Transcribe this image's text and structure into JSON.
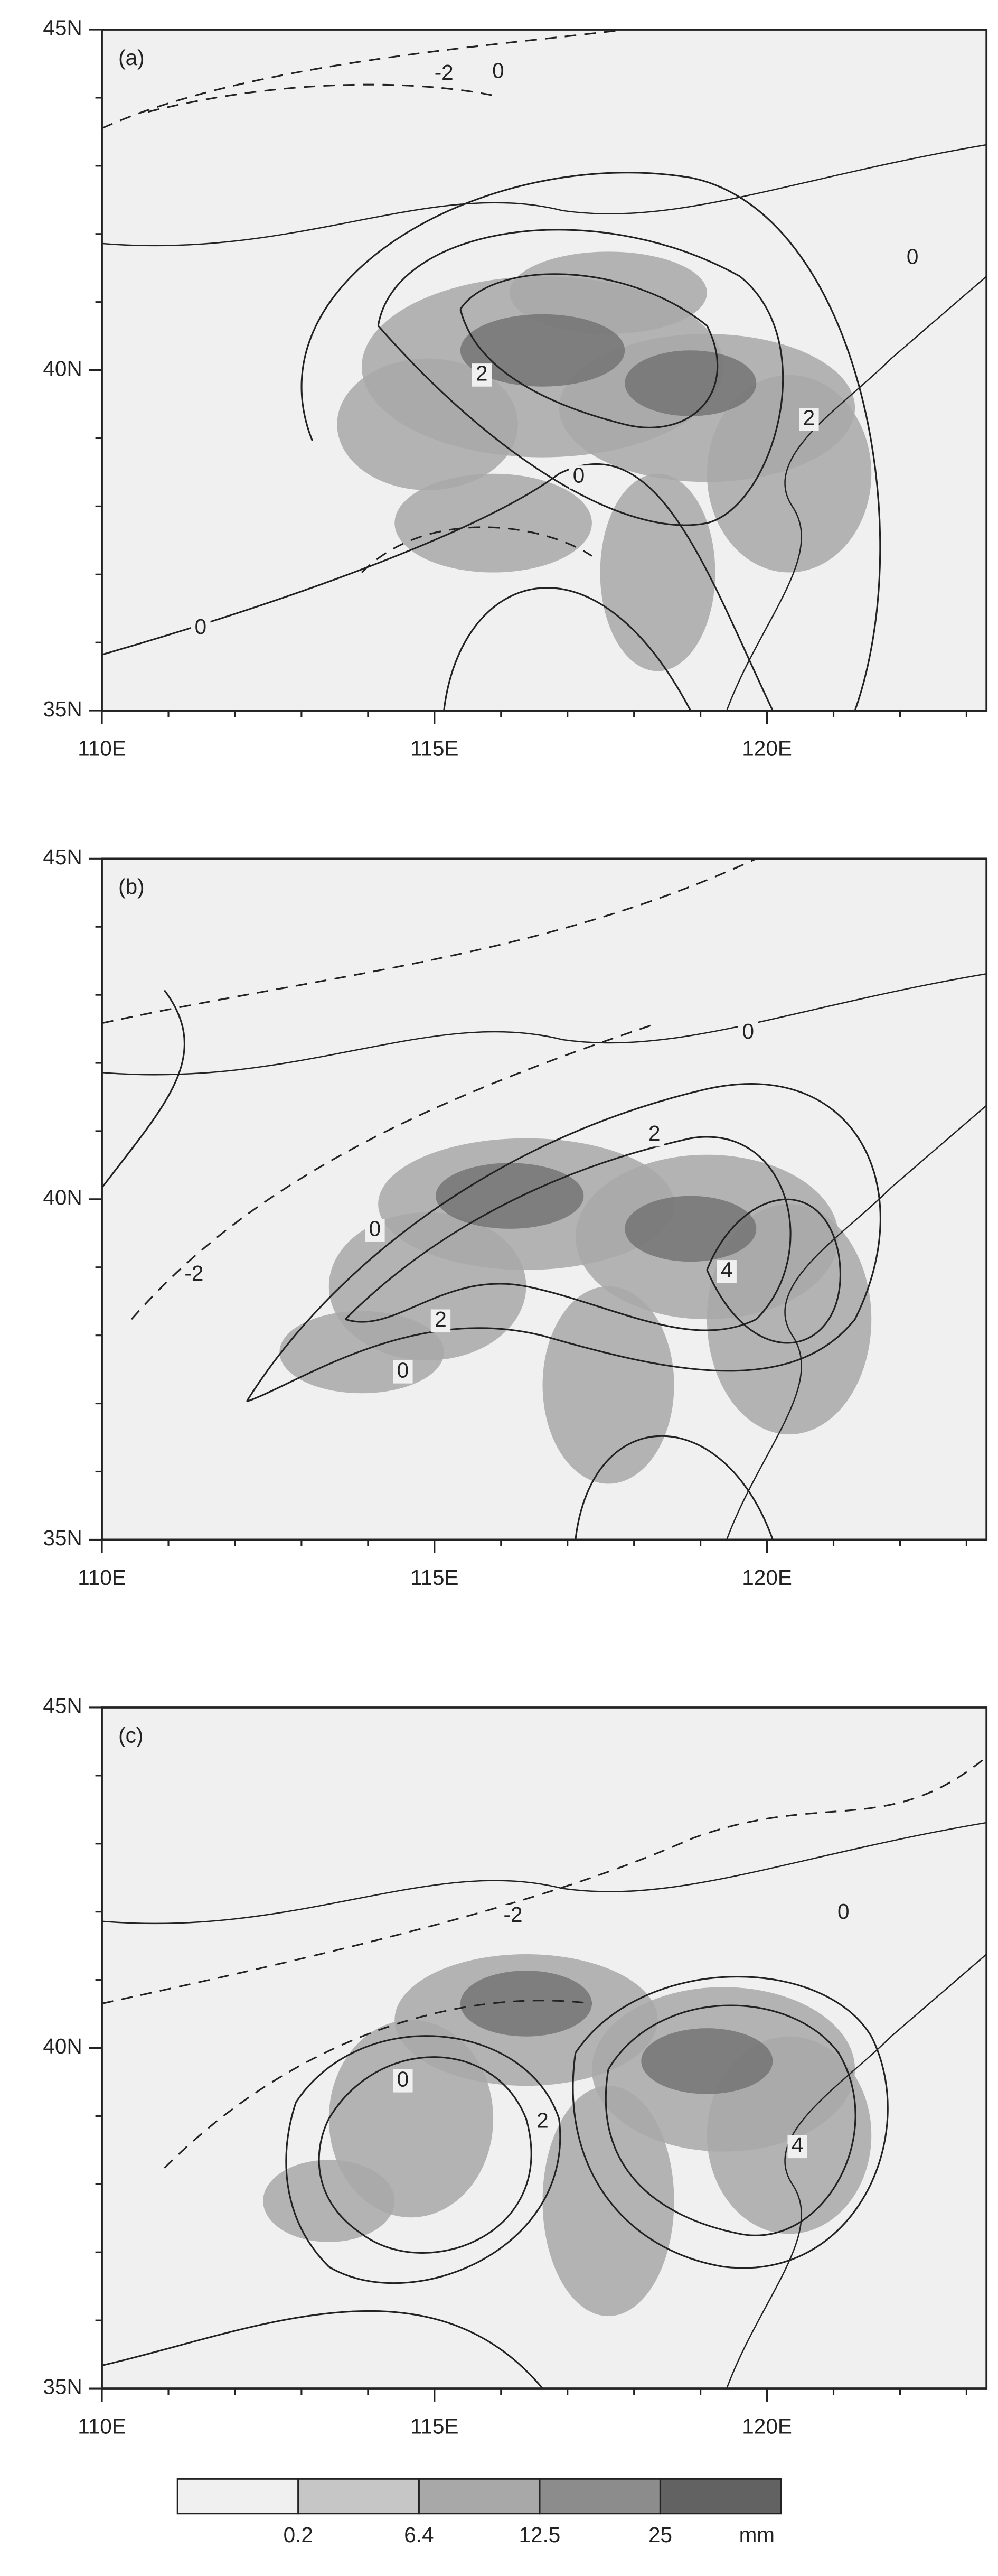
{
  "panels": [
    {
      "label": "(a)",
      "contour_labels": [
        "-2",
        "0",
        "0",
        "2",
        "2",
        "0",
        "0"
      ]
    },
    {
      "label": "(b)",
      "contour_labels": [
        "0",
        "2",
        "-2",
        "0",
        "4",
        "2",
        "0"
      ]
    },
    {
      "label": "(c)",
      "contour_labels": [
        "-2",
        "0",
        "0",
        "2",
        "4"
      ]
    }
  ],
  "x_labels": [
    "110E",
    "115E",
    "120E"
  ],
  "y_labels": [
    "45N",
    "40N",
    "35N"
  ],
  "colorbar": {
    "labels": [
      "0.2",
      "6.4",
      "12.5",
      "25"
    ],
    "unit": "mm",
    "colors": [
      "#f0f0f0",
      "#c6c6c6",
      "#a8a8a8",
      "#8c8c8c",
      "#626262"
    ]
  }
}
